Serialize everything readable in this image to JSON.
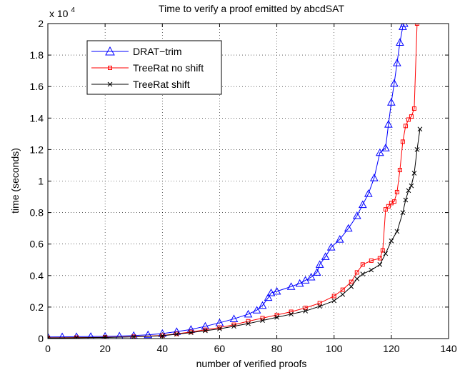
{
  "chart_data": {
    "type": "line",
    "title": "Time to verify a proof emitted by abcdSAT",
    "xlabel": "number of verified proofs",
    "ylabel": "time (seconds)",
    "y_scale_label": "x 10",
    "y_scale_exponent": "4",
    "xlim": [
      0,
      140
    ],
    "ylim": [
      0,
      20000
    ],
    "xticks": [
      0,
      20,
      40,
      60,
      80,
      100,
      120,
      140
    ],
    "yticks": [
      0,
      2000,
      4000,
      6000,
      8000,
      10000,
      12000,
      14000,
      16000,
      18000,
      20000
    ],
    "ytick_labels": [
      "0",
      "0.2",
      "0.4",
      "0.6",
      "0.8",
      "1",
      "1.2",
      "1.4",
      "1.6",
      "1.8",
      "2"
    ],
    "grid": true,
    "legend_position": "top-left",
    "series": [
      {
        "name": "DRAT−trim",
        "color": "#0000ff",
        "marker": "triangle",
        "points": [
          [
            0,
            100
          ],
          [
            5,
            110
          ],
          [
            10,
            120
          ],
          [
            15,
            130
          ],
          [
            20,
            140
          ],
          [
            25,
            160
          ],
          [
            30,
            190
          ],
          [
            35,
            240
          ],
          [
            40,
            320
          ],
          [
            45,
            440
          ],
          [
            50,
            580
          ],
          [
            55,
            780
          ],
          [
            60,
            1000
          ],
          [
            65,
            1250
          ],
          [
            70,
            1550
          ],
          [
            73,
            1800
          ],
          [
            75,
            2100
          ],
          [
            77,
            2600
          ],
          [
            78,
            2900
          ],
          [
            80,
            3000
          ],
          [
            85,
            3300
          ],
          [
            88,
            3500
          ],
          [
            90,
            3700
          ],
          [
            92,
            3900
          ],
          [
            94,
            4200
          ],
          [
            95,
            4700
          ],
          [
            97,
            5200
          ],
          [
            99,
            5800
          ],
          [
            102,
            6300
          ],
          [
            105,
            7000
          ],
          [
            108,
            7800
          ],
          [
            110,
            8500
          ],
          [
            112,
            9200
          ],
          [
            114,
            10200
          ],
          [
            116,
            11800
          ],
          [
            118,
            12100
          ],
          [
            119,
            13600
          ],
          [
            120,
            15000
          ],
          [
            121,
            16200
          ],
          [
            122,
            17500
          ],
          [
            123,
            18800
          ],
          [
            124,
            19800
          ],
          [
            124.5,
            20000
          ]
        ]
      },
      {
        "name": "TreeRat no shift",
        "color": "#ff0000",
        "marker": "square",
        "points": [
          [
            0,
            50
          ],
          [
            10,
            60
          ],
          [
            20,
            80
          ],
          [
            30,
            120
          ],
          [
            40,
            200
          ],
          [
            45,
            300
          ],
          [
            50,
            420
          ],
          [
            55,
            560
          ],
          [
            60,
            700
          ],
          [
            65,
            880
          ],
          [
            70,
            1100
          ],
          [
            75,
            1300
          ],
          [
            80,
            1500
          ],
          [
            85,
            1700
          ],
          [
            90,
            1950
          ],
          [
            95,
            2250
          ],
          [
            100,
            2700
          ],
          [
            103,
            3100
          ],
          [
            106,
            3600
          ],
          [
            108,
            4200
          ],
          [
            110,
            4700
          ],
          [
            113,
            4950
          ],
          [
            116,
            5100
          ],
          [
            117,
            5600
          ],
          [
            118,
            8200
          ],
          [
            119,
            8400
          ],
          [
            120,
            8600
          ],
          [
            121,
            8700
          ],
          [
            122,
            9300
          ],
          [
            123,
            10700
          ],
          [
            124,
            12500
          ],
          [
            125,
            13500
          ],
          [
            126,
            13900
          ],
          [
            127,
            14100
          ],
          [
            128,
            14600
          ],
          [
            129,
            20000
          ]
        ]
      },
      {
        "name": "TreeRat shift",
        "color": "#000000",
        "marker": "x",
        "points": [
          [
            0,
            40
          ],
          [
            10,
            50
          ],
          [
            20,
            70
          ],
          [
            30,
            110
          ],
          [
            40,
            180
          ],
          [
            45,
            280
          ],
          [
            50,
            380
          ],
          [
            55,
            500
          ],
          [
            60,
            620
          ],
          [
            65,
            780
          ],
          [
            70,
            950
          ],
          [
            75,
            1150
          ],
          [
            80,
            1350
          ],
          [
            85,
            1550
          ],
          [
            90,
            1750
          ],
          [
            95,
            2050
          ],
          [
            100,
            2400
          ],
          [
            103,
            2800
          ],
          [
            106,
            3300
          ],
          [
            108,
            3800
          ],
          [
            110,
            4100
          ],
          [
            113,
            4350
          ],
          [
            116,
            4700
          ],
          [
            118,
            5400
          ],
          [
            120,
            6200
          ],
          [
            122,
            6800
          ],
          [
            124,
            8000
          ],
          [
            125,
            8800
          ],
          [
            126,
            9400
          ],
          [
            127,
            9700
          ],
          [
            128,
            10500
          ],
          [
            129,
            12000
          ],
          [
            130,
            13300
          ]
        ]
      }
    ]
  }
}
